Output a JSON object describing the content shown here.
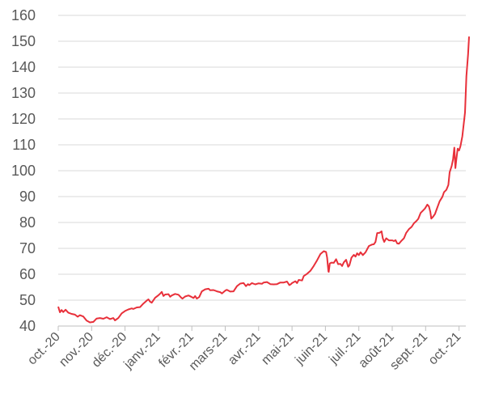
{
  "chart_data": {
    "type": "line",
    "title": "",
    "xlabel": "",
    "ylabel": "",
    "ylim": [
      40,
      160
    ],
    "yticks": [
      40,
      50,
      60,
      70,
      80,
      90,
      100,
      110,
      120,
      130,
      140,
      150,
      160
    ],
    "xticks": [
      "oct.-20",
      "nov.-20",
      "déc.-20",
      "janv.-21",
      "févr.-21",
      "mars-21",
      "avr.-21",
      "mai-21",
      "juin-21",
      "juil.-21",
      "août-21",
      "sept.-21",
      "oct.-21"
    ],
    "grid": "horizontal",
    "legend": "none",
    "color": "#e8303a",
    "series": [
      {
        "points": [
          [
            0.0,
            47.5
          ],
          [
            0.05,
            45.3
          ],
          [
            0.1,
            46.2
          ],
          [
            0.15,
            45.4
          ],
          [
            0.22,
            46.3
          ],
          [
            0.3,
            45.2
          ],
          [
            0.4,
            44.7
          ],
          [
            0.5,
            44.4
          ],
          [
            0.58,
            43.6
          ],
          [
            0.65,
            44.2
          ],
          [
            0.75,
            43.7
          ],
          [
            0.85,
            42.1
          ],
          [
            0.95,
            41.4
          ],
          [
            1.05,
            41.6
          ],
          [
            1.15,
            42.9
          ],
          [
            1.25,
            43.1
          ],
          [
            1.35,
            42.8
          ],
          [
            1.45,
            43.4
          ],
          [
            1.55,
            42.7
          ],
          [
            1.65,
            43.1
          ],
          [
            1.7,
            42.2
          ],
          [
            1.8,
            43.1
          ],
          [
            1.9,
            44.9
          ],
          [
            2.0,
            45.8
          ],
          [
            2.1,
            46.4
          ],
          [
            2.2,
            46.8
          ],
          [
            2.25,
            46.6
          ],
          [
            2.35,
            47.2
          ],
          [
            2.45,
            47.3
          ],
          [
            2.55,
            48.7
          ],
          [
            2.65,
            49.8
          ],
          [
            2.7,
            50.3
          ],
          [
            2.75,
            49.4
          ],
          [
            2.8,
            49.0
          ],
          [
            2.9,
            50.9
          ],
          [
            3.0,
            51.9
          ],
          [
            3.05,
            52.5
          ],
          [
            3.1,
            53.2
          ],
          [
            3.15,
            51.6
          ],
          [
            3.2,
            52.2
          ],
          [
            3.3,
            52.3
          ],
          [
            3.35,
            51.3
          ],
          [
            3.4,
            51.8
          ],
          [
            3.5,
            52.4
          ],
          [
            3.6,
            52.1
          ],
          [
            3.68,
            51.0
          ],
          [
            3.72,
            50.6
          ],
          [
            3.8,
            51.4
          ],
          [
            3.9,
            51.8
          ],
          [
            4.0,
            51.2
          ],
          [
            4.05,
            50.8
          ],
          [
            4.1,
            51.6
          ],
          [
            4.15,
            50.6
          ],
          [
            4.22,
            51.2
          ],
          [
            4.3,
            53.4
          ],
          [
            4.4,
            54.2
          ],
          [
            4.5,
            54.4
          ],
          [
            4.55,
            53.8
          ],
          [
            4.65,
            53.9
          ],
          [
            4.75,
            53.4
          ],
          [
            4.85,
            53.1
          ],
          [
            4.9,
            52.6
          ],
          [
            5.0,
            53.7
          ],
          [
            5.05,
            54.0
          ],
          [
            5.15,
            53.3
          ],
          [
            5.25,
            53.4
          ],
          [
            5.35,
            55.4
          ],
          [
            5.45,
            56.4
          ],
          [
            5.55,
            56.6
          ],
          [
            5.62,
            55.4
          ],
          [
            5.68,
            56.2
          ],
          [
            5.72,
            55.8
          ],
          [
            5.8,
            56.6
          ],
          [
            5.9,
            56.1
          ],
          [
            6.0,
            56.5
          ],
          [
            6.1,
            56.3
          ],
          [
            6.15,
            56.8
          ],
          [
            6.25,
            57.0
          ],
          [
            6.3,
            56.6
          ],
          [
            6.35,
            56.2
          ],
          [
            6.45,
            56.1
          ],
          [
            6.55,
            56.2
          ],
          [
            6.65,
            56.8
          ],
          [
            6.75,
            56.8
          ],
          [
            6.85,
            57.2
          ],
          [
            6.92,
            55.8
          ],
          [
            6.96,
            56.1
          ],
          [
            7.0,
            56.6
          ],
          [
            7.1,
            57.3
          ],
          [
            7.15,
            56.6
          ],
          [
            7.2,
            57.8
          ],
          [
            7.3,
            57.6
          ],
          [
            7.35,
            59.3
          ],
          [
            7.45,
            60.2
          ],
          [
            7.55,
            61.3
          ],
          [
            7.65,
            63.2
          ],
          [
            7.75,
            65.4
          ],
          [
            7.85,
            67.8
          ],
          [
            7.95,
            68.9
          ],
          [
            8.02,
            68.6
          ],
          [
            8.05,
            66.4
          ],
          [
            8.09,
            61.1
          ],
          [
            8.1,
            60.9
          ],
          [
            8.13,
            64.2
          ],
          [
            8.18,
            64.5
          ],
          [
            8.25,
            64.4
          ],
          [
            8.32,
            65.8
          ],
          [
            8.38,
            63.9
          ],
          [
            8.45,
            64.0
          ],
          [
            8.5,
            63.2
          ],
          [
            8.55,
            64.6
          ],
          [
            8.62,
            65.6
          ],
          [
            8.68,
            62.9
          ],
          [
            8.72,
            63.5
          ],
          [
            8.78,
            66.4
          ],
          [
            8.85,
            67.5
          ],
          [
            8.9,
            66.8
          ],
          [
            8.95,
            68.1
          ],
          [
            9.0,
            67.4
          ],
          [
            9.05,
            68.5
          ],
          [
            9.12,
            67.4
          ],
          [
            9.2,
            68.5
          ],
          [
            9.3,
            70.9
          ],
          [
            9.4,
            71.5
          ],
          [
            9.45,
            71.6
          ],
          [
            9.5,
            72.5
          ],
          [
            9.55,
            75.9
          ],
          [
            9.62,
            76.0
          ],
          [
            9.68,
            76.6
          ],
          [
            9.72,
            73.8
          ],
          [
            9.76,
            72.5
          ],
          [
            9.82,
            73.9
          ],
          [
            9.9,
            73.1
          ],
          [
            10.0,
            73.1
          ],
          [
            10.05,
            72.8
          ],
          [
            10.1,
            73.2
          ],
          [
            10.15,
            71.9
          ],
          [
            10.2,
            71.8
          ],
          [
            10.28,
            73.0
          ],
          [
            10.35,
            73.9
          ],
          [
            10.42,
            76.0
          ],
          [
            10.5,
            77.4
          ],
          [
            10.58,
            78.3
          ],
          [
            10.65,
            79.7
          ],
          [
            10.72,
            80.5
          ],
          [
            10.78,
            81.4
          ],
          [
            10.85,
            83.7
          ],
          [
            10.92,
            84.6
          ],
          [
            10.98,
            85.4
          ],
          [
            11.05,
            86.9
          ],
          [
            11.1,
            86.2
          ],
          [
            11.14,
            84.1
          ],
          [
            11.17,
            81.5
          ],
          [
            11.22,
            82.2
          ],
          [
            11.28,
            83.3
          ],
          [
            11.35,
            85.8
          ],
          [
            11.42,
            88.2
          ],
          [
            11.5,
            89.9
          ],
          [
            11.55,
            91.7
          ],
          [
            11.62,
            92.6
          ],
          [
            11.68,
            94.5
          ],
          [
            11.72,
            99.4
          ],
          [
            11.78,
            101.8
          ],
          [
            11.82,
            104.4
          ],
          [
            11.86,
            108.9
          ],
          [
            11.89,
            101.0
          ],
          [
            11.92,
            104.4
          ],
          [
            11.96,
            108.5
          ],
          [
            12.0,
            107.8
          ],
          [
            12.04,
            109.4
          ],
          [
            12.1,
            113.3
          ],
          [
            12.18,
            122.5
          ],
          [
            12.22,
            136.5
          ],
          [
            12.27,
            145.0
          ],
          [
            12.3,
            151.8
          ]
        ]
      }
    ]
  }
}
